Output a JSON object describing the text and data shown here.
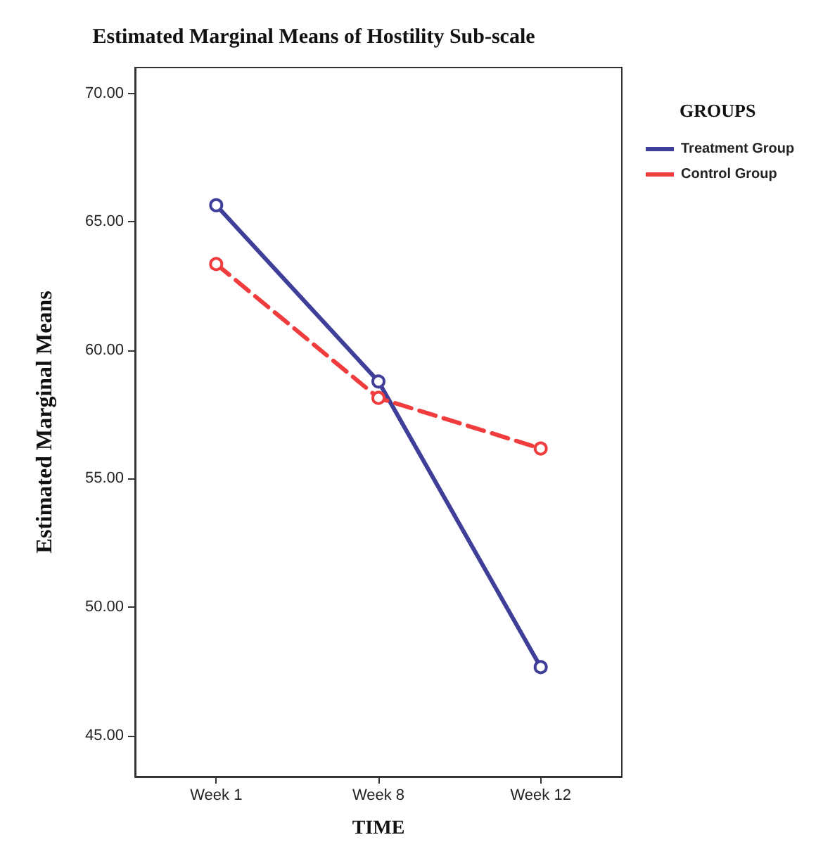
{
  "chart_data": {
    "type": "line",
    "title": "Estimated Marginal Means of Hostility Sub-scale",
    "xlabel": "TIME",
    "ylabel": "Estimated Marginal Means",
    "legend_title": "GROUPS",
    "categories": [
      "Week 1",
      "Week 8",
      "Week 12"
    ],
    "series": [
      {
        "name": "Treatment Group",
        "color": "#3f3f9a",
        "values": [
          65.64,
          58.78,
          47.66
        ],
        "line_style": "solid"
      },
      {
        "name": "Control Group",
        "color": "#f03c3c",
        "values": [
          63.35,
          58.14,
          56.17
        ],
        "line_style": "dashed"
      }
    ],
    "ylim": [
      43.4,
      71
    ],
    "yticks": [
      {
        "value": 45,
        "label": "45.00"
      },
      {
        "value": 50,
        "label": "50.00"
      },
      {
        "value": 55,
        "label": "55.00"
      },
      {
        "value": 60,
        "label": "60.00"
      },
      {
        "value": 65,
        "label": "65.00"
      },
      {
        "value": 70,
        "label": "70.00"
      }
    ],
    "grid": false,
    "legend": "right",
    "marker": "circle"
  }
}
